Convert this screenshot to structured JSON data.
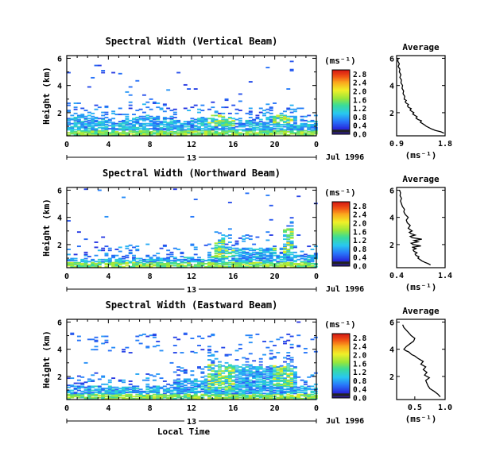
{
  "figure": {
    "bottom_xlabel": "Local Time"
  },
  "chart_data": [
    {
      "type": "heatmap",
      "panel": "vertical",
      "title": "Spectral Width (Vertical Beam)",
      "ylabel": "Height (km)",
      "xticks": [
        "0",
        "4",
        "8",
        "12",
        "16",
        "20",
        "0"
      ],
      "ytick_labels": [
        "2",
        "4",
        "6"
      ],
      "xlim": [
        0,
        24
      ],
      "ylim": [
        0.3,
        6.2
      ],
      "day_label": "13",
      "date_label": "Jul 1996",
      "colorbar": {
        "unit": "(ms⁻¹)",
        "tick_labels": [
          "0.0",
          "0.4",
          "0.8",
          "1.2",
          "1.6",
          "2.0",
          "2.4",
          "2.8"
        ],
        "range": [
          0,
          3
        ]
      },
      "average_profile": {
        "title": "Average",
        "xlabel": "(ms⁻¹)",
        "xtick_labels": [
          "0.9",
          "1.8"
        ],
        "xlim": [
          0.9,
          1.8
        ],
        "ylim": [
          0.3,
          6.2
        ],
        "ytick_labels": [
          "2",
          "4",
          "6"
        ],
        "points": [
          [
            1.78,
            0.5
          ],
          [
            1.72,
            0.6
          ],
          [
            1.62,
            0.7
          ],
          [
            1.55,
            0.8
          ],
          [
            1.5,
            0.9
          ],
          [
            1.45,
            1.0
          ],
          [
            1.42,
            1.1
          ],
          [
            1.38,
            1.2
          ],
          [
            1.34,
            1.3
          ],
          [
            1.36,
            1.4
          ],
          [
            1.3,
            1.5
          ],
          [
            1.26,
            1.6
          ],
          [
            1.28,
            1.7
          ],
          [
            1.24,
            1.8
          ],
          [
            1.2,
            1.9
          ],
          [
            1.22,
            2.0
          ],
          [
            1.18,
            2.1
          ],
          [
            1.15,
            2.2
          ],
          [
            1.17,
            2.3
          ],
          [
            1.12,
            2.4
          ],
          [
            1.1,
            2.5
          ],
          [
            1.12,
            2.6
          ],
          [
            1.08,
            2.7
          ],
          [
            1.06,
            2.8
          ],
          [
            1.08,
            2.9
          ],
          [
            1.04,
            3.0
          ],
          [
            1.05,
            3.2
          ],
          [
            1.02,
            3.4
          ],
          [
            1.03,
            3.6
          ],
          [
            1.0,
            3.8
          ],
          [
            1.01,
            4.0
          ],
          [
            0.98,
            4.2
          ],
          [
            0.99,
            4.4
          ],
          [
            0.96,
            4.6
          ],
          [
            0.98,
            4.8
          ],
          [
            0.95,
            5.0
          ],
          [
            0.96,
            5.2
          ],
          [
            0.93,
            5.4
          ],
          [
            0.95,
            5.6
          ],
          [
            0.92,
            5.8
          ],
          [
            0.93,
            6.0
          ]
        ]
      }
    },
    {
      "type": "heatmap",
      "panel": "northward",
      "title": "Spectral Width (Northward Beam)",
      "ylabel": "Height (km)",
      "xticks": [
        "0",
        "4",
        "8",
        "12",
        "16",
        "20",
        "0"
      ],
      "ytick_labels": [
        "2",
        "4",
        "6"
      ],
      "xlim": [
        0,
        24
      ],
      "ylim": [
        0.3,
        6.2
      ],
      "day_label": "13",
      "date_label": "Jul 1996",
      "colorbar": {
        "unit": "(ms⁻¹)",
        "tick_labels": [
          "0.0",
          "0.4",
          "0.8",
          "1.2",
          "1.6",
          "2.0",
          "2.4",
          "2.8"
        ],
        "range": [
          0,
          3
        ]
      },
      "average_profile": {
        "title": "Average",
        "xlabel": "(ms⁻¹)",
        "xtick_labels": [
          "0.4",
          "1.4"
        ],
        "xlim": [
          0.4,
          1.4
        ],
        "ylim": [
          0.3,
          6.2
        ],
        "ytick_labels": [
          "2",
          "4",
          "6"
        ],
        "points": [
          [
            1.1,
            0.5
          ],
          [
            1.05,
            0.6
          ],
          [
            0.98,
            0.7
          ],
          [
            0.92,
            0.8
          ],
          [
            0.88,
            0.9
          ],
          [
            0.84,
            1.0
          ],
          [
            0.86,
            1.1
          ],
          [
            0.8,
            1.2
          ],
          [
            0.78,
            1.3
          ],
          [
            0.82,
            1.4
          ],
          [
            0.76,
            1.5
          ],
          [
            0.74,
            1.6
          ],
          [
            0.8,
            1.7
          ],
          [
            0.72,
            1.8
          ],
          [
            0.9,
            1.9
          ],
          [
            0.74,
            2.0
          ],
          [
            0.7,
            2.1
          ],
          [
            0.84,
            2.2
          ],
          [
            0.76,
            2.3
          ],
          [
            0.92,
            2.4
          ],
          [
            0.72,
            2.5
          ],
          [
            0.68,
            2.6
          ],
          [
            0.78,
            2.7
          ],
          [
            0.7,
            2.8
          ],
          [
            0.66,
            2.9
          ],
          [
            0.72,
            3.0
          ],
          [
            0.64,
            3.2
          ],
          [
            0.68,
            3.4
          ],
          [
            0.62,
            3.6
          ],
          [
            0.6,
            3.8
          ],
          [
            0.64,
            4.0
          ],
          [
            0.58,
            4.2
          ],
          [
            0.55,
            4.4
          ],
          [
            0.56,
            4.6
          ],
          [
            0.52,
            4.8
          ],
          [
            0.5,
            5.0
          ],
          [
            0.48,
            5.2
          ],
          [
            0.5,
            5.4
          ],
          [
            0.47,
            5.6
          ],
          [
            0.48,
            5.8
          ],
          [
            0.46,
            6.0
          ]
        ]
      }
    },
    {
      "type": "heatmap",
      "panel": "eastward",
      "title": "Spectral Width (Eastward Beam)",
      "ylabel": "Height (km)",
      "xticks": [
        "0",
        "4",
        "8",
        "12",
        "16",
        "20",
        "0"
      ],
      "ytick_labels": [
        "2",
        "4",
        "6"
      ],
      "xlim": [
        0,
        24
      ],
      "ylim": [
        0.3,
        6.2
      ],
      "day_label": "13",
      "date_label": "Jul 1996",
      "colorbar": {
        "unit": "(ms⁻¹)",
        "tick_labels": [
          "0.0",
          "0.4",
          "0.8",
          "1.2",
          "1.6",
          "2.0",
          "2.4",
          "2.8"
        ],
        "range": [
          0,
          3
        ]
      },
      "average_profile": {
        "title": "Average",
        "xlabel": "(ms⁻¹)",
        "xtick_labels": [
          "0.5",
          "1.0"
        ],
        "xlim": [
          0.2,
          1.0
        ],
        "ylim": [
          0.3,
          6.2
        ],
        "ytick_labels": [
          "2",
          "4",
          "6"
        ],
        "points": [
          [
            0.92,
            0.5
          ],
          [
            0.88,
            0.7
          ],
          [
            0.82,
            0.9
          ],
          [
            0.75,
            1.1
          ],
          [
            0.72,
            1.3
          ],
          [
            0.7,
            1.5
          ],
          [
            0.68,
            1.7
          ],
          [
            0.74,
            1.9
          ],
          [
            0.66,
            2.1
          ],
          [
            0.7,
            2.3
          ],
          [
            0.64,
            2.5
          ],
          [
            0.68,
            2.7
          ],
          [
            0.6,
            2.9
          ],
          [
            0.64,
            3.1
          ],
          [
            0.56,
            3.3
          ],
          [
            0.5,
            3.5
          ],
          [
            0.45,
            3.6
          ],
          [
            0.4,
            3.8
          ],
          [
            0.35,
            3.9
          ],
          [
            0.32,
            4.0
          ],
          [
            0.36,
            4.2
          ],
          [
            0.42,
            4.4
          ],
          [
            0.48,
            4.6
          ],
          [
            0.5,
            4.8
          ],
          [
            0.44,
            5.0
          ],
          [
            0.4,
            5.2
          ],
          [
            0.36,
            5.4
          ],
          [
            0.32,
            5.6
          ],
          [
            0.3,
            5.8
          ]
        ]
      }
    }
  ]
}
